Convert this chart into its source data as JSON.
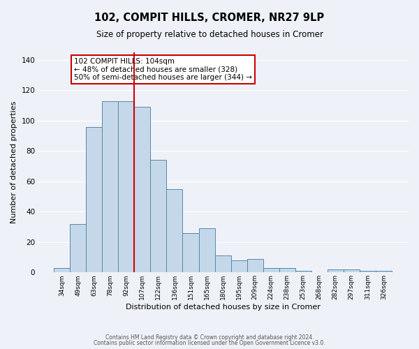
{
  "title": "102, COMPIT HILLS, CROMER, NR27 9LP",
  "subtitle": "Size of property relative to detached houses in Cromer",
  "xlabel": "Distribution of detached houses by size in Cromer",
  "ylabel": "Number of detached properties",
  "bar_color": "#c5d8ea",
  "bar_edge_color": "#5588aa",
  "background_color": "#eef2f8",
  "grid_color": "#ffffff",
  "categories": [
    "34sqm",
    "49sqm",
    "63sqm",
    "78sqm",
    "92sqm",
    "107sqm",
    "122sqm",
    "136sqm",
    "151sqm",
    "165sqm",
    "180sqm",
    "195sqm",
    "209sqm",
    "224sqm",
    "238sqm",
    "253sqm",
    "268sqm",
    "282sqm",
    "297sqm",
    "311sqm",
    "326sqm"
  ],
  "values": [
    3,
    32,
    96,
    113,
    113,
    109,
    74,
    55,
    26,
    29,
    11,
    8,
    9,
    3,
    3,
    1,
    0,
    2,
    2,
    1,
    1
  ],
  "vline_pos": 5.5,
  "vline_color": "#cc0000",
  "annotation_text": "102 COMPIT HILLS: 104sqm\n← 48% of detached houses are smaller (328)\n50% of semi-detached houses are larger (344) →",
  "annotation_box_color": "#ffffff",
  "annotation_box_edge_color": "#cc0000",
  "ylim": [
    0,
    145
  ],
  "yticks": [
    0,
    20,
    40,
    60,
    80,
    100,
    120,
    140
  ],
  "footer1": "Contains HM Land Registry data © Crown copyright and database right 2024.",
  "footer2": "Contains public sector information licensed under the Open Government Licence v3.0."
}
